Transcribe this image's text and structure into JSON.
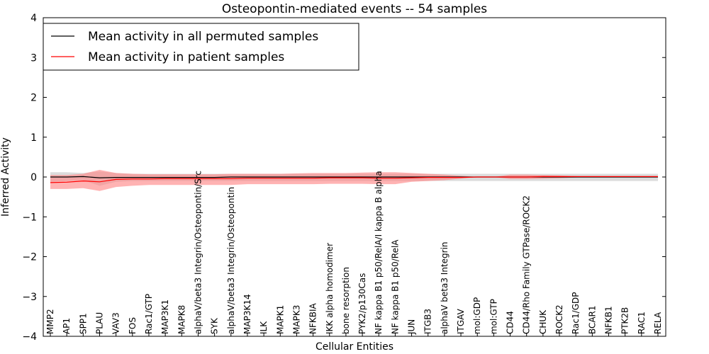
{
  "chart_data": {
    "type": "line",
    "title": "Osteopontin-mediated events -- 54 samples",
    "xlabel": "Cellular Entities",
    "ylabel": "Inferred Activity",
    "ylim": [
      -4,
      4
    ],
    "yticks": [
      -4,
      -3,
      -2,
      -1,
      0,
      1,
      2,
      3,
      4
    ],
    "ytick_labels": [
      "−4",
      "−3",
      "−2",
      "−1",
      "0",
      "1",
      "2",
      "3",
      "4"
    ],
    "legend_position": "top-left",
    "colors": {
      "permuted": "#000000",
      "permuted_band": "#bfbfbf",
      "patient": "#ff0000",
      "patient_band": "#ff8080"
    },
    "categories": [
      "MMP2",
      "AP1",
      "SPP1",
      "PLAU",
      "VAV3",
      "FOS",
      "Rac1/GTP",
      "MAP3K1",
      "MAPK8",
      "alphaV/beta3 Integrin/Osteopontin/Src",
      "SYK",
      "alphaV/beta3 Integrin/Osteopontin",
      "MAP3K14",
      "ILK",
      "MAPK1",
      "MAPK3",
      "NFKBIA",
      "IKK alpha homodimer",
      "bone resorption",
      "PYK2/p130Cas",
      "NF kappa B1 p50/RelA/I kappa B alpha",
      "NF kappa B1 p50/RelA",
      "JUN",
      "ITGB3",
      "alphaV beta3 Integrin",
      "ITGAV",
      "mol:GDP",
      "mol:GTP",
      "CD44",
      "CD44/Rho Family GTPase/ROCK2",
      "CHUK",
      "ROCK2",
      "Rac1/GDP",
      "BCAR1",
      "NFKB1",
      "PTK2B",
      "RAC1",
      "RELA"
    ],
    "series": [
      {
        "name": "Mean activity in all permuted samples",
        "values": [
          0.0,
          0.0,
          0.01,
          -0.02,
          -0.01,
          -0.01,
          -0.01,
          -0.01,
          -0.01,
          -0.01,
          -0.01,
          0.0,
          0.0,
          0.0,
          0.0,
          0.0,
          0.0,
          0.0,
          0.0,
          0.0,
          0.0,
          0.0,
          0.0,
          0.0,
          0.0,
          0.0,
          0.0,
          0.0,
          0.0,
          0.0,
          0.0,
          0.0,
          0.0,
          0.0,
          0.0,
          0.0,
          0.0,
          0.0
        ],
        "lower": [
          -0.12,
          -0.1,
          -0.08,
          -0.22,
          -0.12,
          -0.1,
          -0.1,
          -0.1,
          -0.1,
          -0.1,
          -0.1,
          -0.1,
          -0.1,
          -0.1,
          -0.1,
          -0.1,
          -0.1,
          -0.1,
          -0.1,
          -0.1,
          -0.1,
          -0.1,
          -0.1,
          -0.1,
          -0.1,
          -0.1,
          -0.1,
          -0.1,
          -0.1,
          -0.1,
          -0.1,
          -0.1,
          -0.1,
          -0.1,
          -0.1,
          -0.1,
          -0.1,
          -0.1
        ],
        "upper": [
          0.12,
          0.12,
          0.1,
          0.14,
          0.1,
          0.08,
          0.08,
          0.08,
          0.08,
          0.08,
          0.08,
          0.08,
          0.08,
          0.08,
          0.08,
          0.08,
          0.08,
          0.08,
          0.08,
          0.08,
          0.08,
          0.08,
          0.08,
          0.08,
          0.08,
          0.08,
          0.08,
          0.08,
          0.08,
          0.08,
          0.08,
          0.08,
          0.08,
          0.08,
          0.08,
          0.08,
          0.08,
          0.08
        ]
      },
      {
        "name": "Mean activity in patient samples",
        "values": [
          -0.14,
          -0.13,
          -0.1,
          -0.12,
          -0.06,
          -0.05,
          -0.05,
          -0.04,
          -0.04,
          -0.04,
          -0.04,
          -0.04,
          -0.03,
          -0.03,
          -0.03,
          -0.03,
          -0.03,
          -0.02,
          -0.02,
          -0.02,
          -0.03,
          -0.03,
          -0.02,
          -0.01,
          -0.01,
          -0.01,
          0.0,
          0.0,
          0.0,
          0.0,
          0.01,
          0.01,
          0.01,
          0.01,
          0.01,
          0.01,
          0.01,
          0.01
        ],
        "lower": [
          -0.3,
          -0.3,
          -0.28,
          -0.35,
          -0.25,
          -0.22,
          -0.2,
          -0.2,
          -0.2,
          -0.2,
          -0.2,
          -0.2,
          -0.18,
          -0.18,
          -0.18,
          -0.18,
          -0.18,
          -0.17,
          -0.17,
          -0.17,
          -0.18,
          -0.18,
          -0.12,
          -0.1,
          -0.08,
          -0.04,
          0.0,
          0.0,
          -0.05,
          -0.05,
          -0.04,
          -0.03,
          -0.01,
          0.0,
          0.0,
          0.0,
          0.0,
          0.0
        ],
        "upper": [
          0.05,
          0.05,
          0.08,
          0.18,
          0.1,
          0.08,
          0.07,
          0.07,
          0.07,
          0.07,
          0.07,
          0.08,
          0.08,
          0.08,
          0.08,
          0.09,
          0.1,
          0.1,
          0.1,
          0.11,
          0.12,
          0.12,
          0.1,
          0.08,
          0.06,
          0.03,
          0.0,
          0.0,
          0.06,
          0.06,
          0.05,
          0.04,
          0.02,
          0.01,
          0.01,
          0.01,
          0.01,
          0.01
        ]
      }
    ]
  }
}
